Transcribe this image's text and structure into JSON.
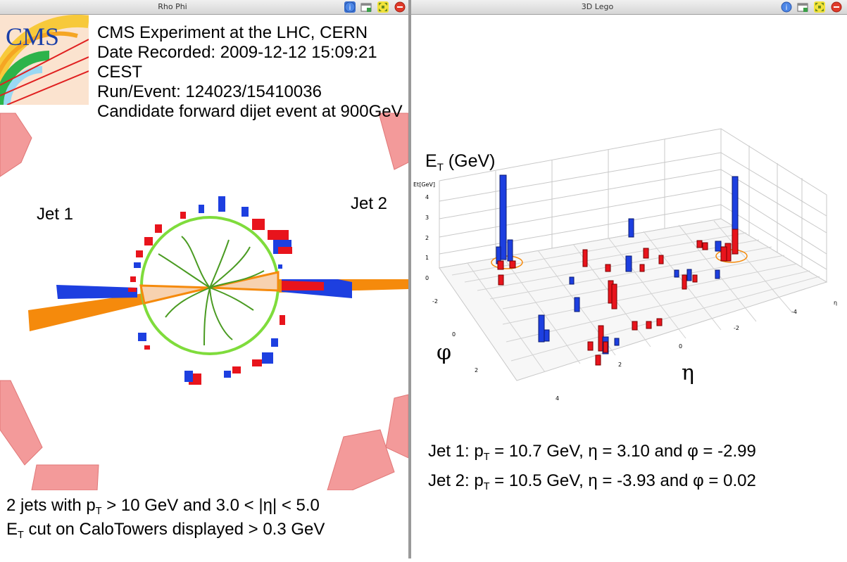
{
  "left_panel": {
    "title": "Rho Phi",
    "logo_text": "CMS",
    "info": {
      "line1": "CMS Experiment at the LHC, CERN",
      "line2": "Date Recorded: 2009-12-12 15:09:21 CEST",
      "line3": "Run/Event: 124023/15410036",
      "line4": "Candidate forward dijet event at 900GeV"
    },
    "jet1_label": "Jet 1",
    "jet2_label": "Jet 2",
    "footer": {
      "line1_pre": "2 jets with p",
      "line1_sub": "T",
      "line1_post": " > 10 GeV and 3.0 < |η| < 5.0",
      "line2_pre": "E",
      "line2_sub": "T",
      "line2_post": " cut on CaloTowers displayed > 0.3 GeV"
    }
  },
  "right_panel": {
    "title": "3D Lego",
    "et_label_main": "E",
    "et_label_sub": "T",
    "et_label_unit": " (GeV)",
    "axis_et_small": "Et[GeV]",
    "phi_label": "φ",
    "eta_label": "η",
    "eta_small": "η",
    "z_ticks": [
      "4",
      "3",
      "2",
      "1",
      "0"
    ],
    "phi_ticks": [
      "-2",
      "0",
      "2",
      "4"
    ],
    "eta_ticks": [
      "-4",
      "-2",
      "0",
      "2"
    ],
    "jets": [
      {
        "label": "Jet 1: p",
        "sub": "T",
        "rest": " = 10.7 GeV,  η = 3.10 and φ = -2.99"
      },
      {
        "label": "Jet 2: p",
        "sub": "T",
        "rest": " = 10.5 GeV,  η = -3.93 and φ = 0.02"
      }
    ]
  },
  "colors": {
    "ecal": "#e8141c",
    "hcal": "#1d3fe0",
    "jet_cone": "#f58a0c",
    "tracker": "#7fdc3c",
    "track": "#4a9b22",
    "muon": "#f39a9a"
  },
  "icons": [
    "info-icon",
    "window-icon",
    "maximize-icon",
    "close-icon"
  ]
}
